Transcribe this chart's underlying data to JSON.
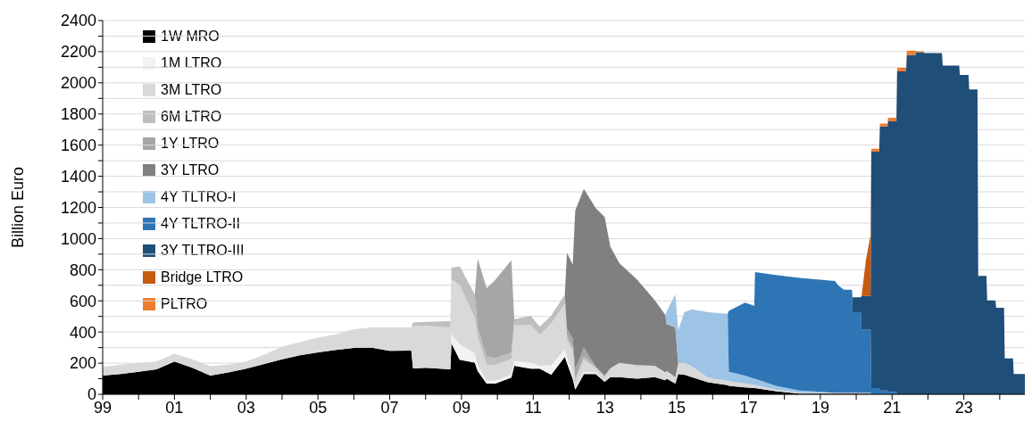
{
  "chart_data": {
    "type": "area",
    "stacked": true,
    "ylabel": "Billion Euro",
    "legend": "top left",
    "grid": "y",
    "xlim": [
      1999,
      2024.7
    ],
    "xticks": [
      {
        "value": 1999,
        "label": "99"
      },
      {
        "value": 2000,
        "label": null
      },
      {
        "value": 2001,
        "label": "01"
      },
      {
        "value": 2002,
        "label": null
      },
      {
        "value": 2003,
        "label": "03"
      },
      {
        "value": 2004,
        "label": null
      },
      {
        "value": 2005,
        "label": "05"
      },
      {
        "value": 2006,
        "label": null
      },
      {
        "value": 2007,
        "label": "07"
      },
      {
        "value": 2008,
        "label": null
      },
      {
        "value": 2009,
        "label": "09"
      },
      {
        "value": 2010,
        "label": null
      },
      {
        "value": 2011,
        "label": "11"
      },
      {
        "value": 2012,
        "label": null
      },
      {
        "value": 2013,
        "label": "13"
      },
      {
        "value": 2014,
        "label": null
      },
      {
        "value": 2015,
        "label": "15"
      },
      {
        "value": 2016,
        "label": null
      },
      {
        "value": 2017,
        "label": "17"
      },
      {
        "value": 2018,
        "label": null
      },
      {
        "value": 2019,
        "label": "19"
      },
      {
        "value": 2020,
        "label": null
      },
      {
        "value": 2021,
        "label": "21"
      },
      {
        "value": 2022,
        "label": null
      },
      {
        "value": 2023,
        "label": "23"
      },
      {
        "value": 2024,
        "label": null
      }
    ],
    "ylim": [
      0,
      2400
    ],
    "yticks": [
      0,
      {
        "value": 100,
        "label": null
      },
      200,
      {
        "value": 300,
        "label": null
      },
      400,
      {
        "value": 500,
        "label": null
      },
      600,
      {
        "value": 700,
        "label": null
      },
      800,
      {
        "value": 900,
        "label": null
      },
      1000,
      {
        "value": 1100,
        "label": null
      },
      1200,
      {
        "value": 1300,
        "label": null
      },
      1400,
      {
        "value": 1500,
        "label": null
      },
      1600,
      {
        "value": 1700,
        "label": null
      },
      1800,
      {
        "value": 1900,
        "label": null
      },
      2000,
      {
        "value": 2100,
        "label": null
      },
      2200,
      {
        "value": 2300,
        "label": null
      },
      2400
    ],
    "x": [
      1999.0,
      1999.5,
      2000.0,
      2000.5,
      2001.0,
      2001.5,
      2002.0,
      2002.5,
      2003.0,
      2003.5,
      2004.0,
      2004.5,
      2005.0,
      2005.5,
      2006.0,
      2006.5,
      2007.0,
      2007.6,
      2007.65,
      2008.0,
      2008.69,
      2008.72,
      2008.95,
      2009.37,
      2009.45,
      2009.7,
      2009.94,
      2010.39,
      2010.47,
      2010.93,
      2011.18,
      2011.5,
      2011.88,
      2011.94,
      2012.1,
      2012.17,
      2012.41,
      2012.74,
      2012.99,
      2013.15,
      2013.4,
      2013.89,
      2014.39,
      2014.68,
      2014.72,
      2014.96,
      2015.04,
      2015.21,
      2015.42,
      2015.87,
      2016.42,
      2016.45,
      2016.9,
      2017.16,
      2017.18,
      2017.76,
      2018.42,
      2019.41,
      2019.5,
      2019.66,
      2019.88,
      2019.9,
      2020.13,
      2020.15,
      2020.27,
      2020.4,
      2020.42,
      2020.64,
      2020.66,
      2020.87,
      2020.89,
      2021.12,
      2021.14,
      2021.39,
      2021.41,
      2021.65,
      2021.67,
      2021.88,
      2021.9,
      2022.39,
      2022.41,
      2022.87,
      2022.89,
      2023.13,
      2023.15,
      2023.38,
      2023.4,
      2023.63,
      2023.65,
      2023.88,
      2023.9,
      2024.12,
      2024.14,
      2024.37,
      2024.39,
      2024.7
    ],
    "series": [
      {
        "name": "1W MRO",
        "color": "#000000",
        "values": [
          120,
          130,
          145,
          160,
          210,
          170,
          120,
          140,
          165,
          195,
          225,
          250,
          269,
          285,
          298,
          300,
          279,
          280,
          166,
          170,
          160,
          327,
          222,
          203,
          150,
          69,
          69,
          107,
          183,
          164,
          164,
          126,
          241,
          200,
          100,
          30,
          130,
          130,
          80,
          110,
          110,
          100,
          110,
          90,
          100,
          69,
          130,
          126,
          110,
          78,
          59,
          55,
          45,
          40,
          40,
          20,
          5,
          5,
          5,
          5,
          5,
          5,
          5,
          5,
          5,
          5,
          0,
          null,
          null,
          null,
          null,
          null,
          null,
          null,
          null,
          null,
          null,
          null,
          null,
          null,
          null,
          null,
          null,
          null,
          null,
          null,
          null,
          null,
          null,
          null,
          null,
          null,
          null,
          null,
          null,
          null
        ]
      },
      {
        "name": "1M LTRO",
        "color": "#f2f2f2",
        "values": [
          null,
          null,
          null,
          null,
          null,
          null,
          null,
          null,
          null,
          null,
          null,
          null,
          null,
          null,
          null,
          null,
          null,
          null,
          null,
          null,
          0,
          60,
          100,
          60,
          40,
          20,
          20,
          20,
          30,
          40,
          20,
          60,
          50,
          40,
          30,
          10,
          14,
          10,
          0,
          null,
          null,
          null,
          null,
          null,
          null,
          null,
          null,
          null,
          null,
          null,
          null,
          null,
          null,
          null,
          null,
          null,
          null,
          null,
          null,
          null,
          null,
          null,
          null,
          null,
          null,
          null,
          null,
          null,
          null,
          null,
          null,
          null,
          null,
          null,
          null,
          null,
          null,
          null,
          null,
          null,
          null,
          null,
          null,
          null,
          null,
          null,
          null,
          null,
          null,
          null,
          null,
          null,
          null,
          null,
          null,
          null
        ]
      },
      {
        "name": "3M LTRO",
        "color": "#d9d9d9",
        "values": [
          55,
          60,
          55,
          50,
          50,
          55,
          60,
          50,
          45,
          60,
          80,
          85,
          95,
          100,
          120,
          130,
          150,
          150,
          275,
          270,
          270,
          350,
          380,
          230,
          180,
          100,
          100,
          100,
          230,
          240,
          200,
          270,
          290,
          110,
          150,
          40,
          80,
          27,
          30,
          57,
          92,
          87,
          73,
          50,
          50,
          40,
          70,
          76,
          70,
          29,
          29,
          30,
          25,
          20,
          20,
          10,
          5,
          5,
          5,
          5,
          5,
          5,
          5,
          5,
          5,
          5,
          0,
          null,
          null,
          null,
          null,
          null,
          null,
          null,
          null,
          null,
          null,
          null,
          null,
          null,
          null,
          null,
          null,
          null,
          null,
          null,
          null,
          null,
          null,
          null,
          null,
          null,
          null,
          null,
          null,
          null
        ]
      },
      {
        "name": "6M LTRO",
        "color": "#bfbfbf",
        "values": [
          null,
          null,
          null,
          null,
          null,
          null,
          null,
          null,
          null,
          null,
          null,
          null,
          null,
          null,
          null,
          null,
          null,
          0,
          20,
          25,
          40,
          76,
          120,
          148,
          60,
          50,
          45,
          40,
          40,
          60,
          50,
          50,
          60,
          30,
          20,
          25,
          20,
          10,
          10,
          0,
          null,
          null,
          null,
          null,
          null,
          null,
          null,
          null,
          null,
          null,
          null,
          null,
          null,
          null,
          null,
          null,
          null,
          null,
          null,
          null,
          null,
          null,
          null,
          null,
          null,
          null,
          null,
          null,
          null,
          null,
          null,
          null,
          null,
          null,
          null,
          null,
          null,
          null,
          null,
          null,
          null,
          null,
          null,
          null,
          null,
          null,
          null,
          null,
          null,
          null,
          null,
          null,
          null,
          null,
          null,
          null
        ]
      },
      {
        "name": "1Y LTRO",
        "color": "#a6a6a6",
        "values": [
          null,
          null,
          null,
          null,
          null,
          null,
          null,
          null,
          null,
          null,
          null,
          null,
          null,
          null,
          null,
          null,
          null,
          null,
          null,
          null,
          null,
          null,
          null,
          0,
          442,
          442,
          500,
          594,
          0,
          null,
          null,
          null,
          0,
          40,
          57,
          57,
          57,
          0,
          null,
          null,
          null,
          null,
          null,
          null,
          null,
          null,
          null,
          null,
          null,
          null,
          null,
          null,
          null,
          null,
          null,
          null,
          null,
          null,
          null,
          null,
          null,
          null,
          null,
          null,
          null,
          null,
          null,
          null,
          null,
          null,
          null,
          null,
          null,
          null,
          null,
          null,
          null,
          null,
          null,
          null,
          null,
          null,
          null,
          null,
          null,
          null,
          null,
          null,
          null,
          null,
          null,
          null,
          null,
          null,
          null,
          null
        ]
      },
      {
        "name": "3Y LTRO",
        "color": "#808080",
        "values": [
          null,
          null,
          null,
          null,
          null,
          null,
          null,
          null,
          null,
          null,
          null,
          null,
          null,
          null,
          null,
          null,
          null,
          null,
          null,
          null,
          null,
          null,
          null,
          null,
          null,
          null,
          null,
          null,
          null,
          null,
          null,
          null,
          0,
          489,
          475,
          1018,
          1018,
          1018,
          1018,
          780,
          640,
          550,
          420,
          370,
          300,
          320,
          0,
          null,
          null,
          null,
          null,
          null,
          null,
          null,
          null,
          null,
          null,
          null,
          null,
          null,
          null,
          null,
          null,
          null,
          null,
          null,
          null,
          null,
          null,
          null,
          null,
          null,
          null,
          null,
          null,
          null,
          null,
          null,
          null,
          null,
          null,
          null,
          null,
          null,
          null,
          null,
          null,
          null,
          null,
          null,
          null,
          null,
          null,
          null,
          null,
          null
        ]
      },
      {
        "name": "4Y TLTRO-I",
        "color": "#9dc3e6",
        "values": [
          null,
          null,
          null,
          null,
          null,
          null,
          null,
          null,
          null,
          null,
          null,
          null,
          null,
          null,
          null,
          null,
          null,
          null,
          null,
          null,
          null,
          null,
          null,
          null,
          null,
          null,
          null,
          null,
          null,
          null,
          null,
          null,
          null,
          null,
          null,
          null,
          null,
          null,
          null,
          null,
          null,
          null,
          null,
          0,
          82,
          212,
          212,
          325,
          366,
          420,
          429,
          60,
          50,
          40,
          40,
          25,
          15,
          0,
          null,
          null,
          null,
          null,
          null,
          null,
          null,
          null,
          null,
          null,
          null,
          null,
          null,
          null,
          null,
          null,
          null,
          null,
          null,
          null,
          null,
          null,
          null,
          null,
          null,
          null,
          null,
          null,
          null,
          null,
          null,
          null,
          null,
          null,
          null,
          null,
          null,
          null
        ]
      },
      {
        "name": "4Y TLTRO-II",
        "color": "#2e75b6",
        "values": [
          null,
          null,
          null,
          null,
          null,
          null,
          null,
          null,
          null,
          null,
          null,
          null,
          null,
          null,
          null,
          null,
          null,
          null,
          null,
          null,
          null,
          null,
          null,
          null,
          null,
          null,
          null,
          null,
          null,
          null,
          null,
          null,
          null,
          null,
          null,
          null,
          null,
          null,
          null,
          null,
          null,
          null,
          null,
          null,
          null,
          null,
          null,
          null,
          null,
          null,
          0,
          391,
          468,
          468,
          685,
          711,
          722,
          717,
          689,
          661,
          661,
          517,
          517,
          406,
          406,
          406,
          40,
          40,
          25,
          25,
          15,
          15,
          0,
          null,
          null,
          null,
          null,
          null,
          null,
          null,
          null,
          null,
          null,
          null,
          null,
          null,
          null,
          null,
          null,
          null,
          null,
          null,
          null,
          null,
          null,
          null
        ]
      },
      {
        "name": "3Y TLTRO-III",
        "color": "#1f4e79",
        "values": [
          null,
          null,
          null,
          null,
          null,
          null,
          null,
          null,
          null,
          null,
          null,
          null,
          null,
          null,
          null,
          null,
          null,
          null,
          null,
          null,
          null,
          null,
          null,
          null,
          null,
          null,
          null,
          null,
          null,
          null,
          null,
          null,
          null,
          null,
          null,
          null,
          null,
          null,
          null,
          null,
          null,
          null,
          null,
          null,
          null,
          null,
          null,
          null,
          null,
          null,
          null,
          null,
          null,
          null,
          null,
          null,
          null,
          null,
          null,
          null,
          0,
          96,
          96,
          216,
          216,
          216,
          1518,
          1518,
          1695,
          1695,
          1738,
          1738,
          2073,
          2073,
          2178,
          2178,
          2197,
          2197,
          2191,
          2191,
          2111,
          2111,
          2050,
          2050,
          1958,
          1958,
          761,
          761,
          603,
          603,
          555,
          555,
          231,
          231,
          131,
          131
        ]
      },
      {
        "name": "Bridge LTRO",
        "color": "#c55a11",
        "values": [
          null,
          null,
          null,
          null,
          null,
          null,
          null,
          null,
          null,
          null,
          null,
          null,
          null,
          null,
          null,
          null,
          null,
          null,
          null,
          null,
          null,
          null,
          null,
          null,
          null,
          null,
          null,
          null,
          null,
          null,
          null,
          null,
          null,
          null,
          null,
          null,
          null,
          null,
          null,
          null,
          null,
          null,
          null,
          null,
          null,
          null,
          null,
          null,
          null,
          null,
          null,
          null,
          null,
          null,
          null,
          null,
          null,
          null,
          null,
          null,
          null,
          null,
          null,
          0,
          229,
          391,
          0,
          null,
          null,
          null,
          null,
          null,
          null,
          null,
          null,
          null,
          null,
          null,
          null,
          null,
          null,
          null,
          null,
          null,
          null,
          null,
          null,
          null,
          null,
          null,
          null,
          null,
          null,
          null,
          null,
          null
        ]
      },
      {
        "name": "PLTRO",
        "color": "#ed7d31",
        "values": [
          null,
          null,
          null,
          null,
          null,
          null,
          null,
          null,
          null,
          null,
          null,
          null,
          null,
          null,
          null,
          null,
          null,
          null,
          null,
          null,
          null,
          null,
          null,
          null,
          null,
          null,
          null,
          null,
          null,
          null,
          null,
          null,
          null,
          null,
          null,
          null,
          null,
          null,
          null,
          null,
          null,
          null,
          null,
          null,
          null,
          null,
          null,
          null,
          null,
          null,
          null,
          null,
          null,
          null,
          null,
          null,
          null,
          null,
          null,
          null,
          null,
          null,
          null,
          null,
          null,
          0,
          19,
          19,
          19,
          19,
          23,
          23,
          23,
          23,
          28,
          28,
          5,
          5,
          0,
          null,
          null,
          null,
          null,
          null,
          null,
          null,
          null,
          null,
          null,
          null,
          null,
          null,
          null,
          null,
          null,
          null
        ]
      }
    ]
  }
}
